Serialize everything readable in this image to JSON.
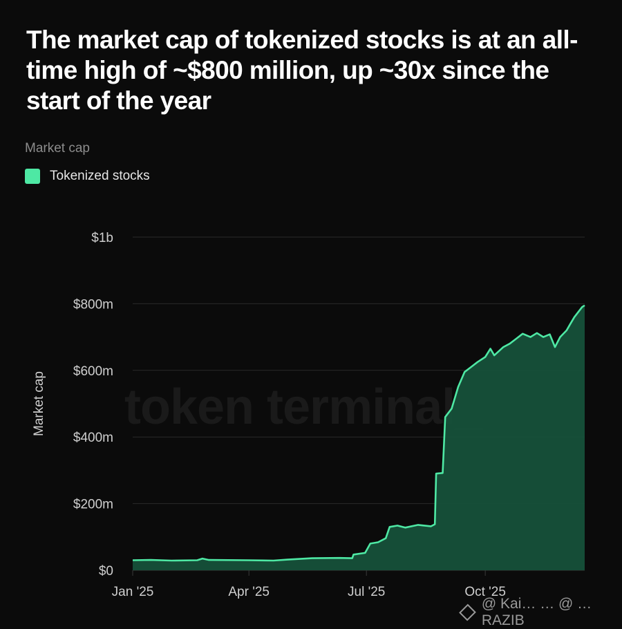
{
  "header": {
    "title": "The market cap of tokenized stocks is at an all-time high of ~$800 million, up ~30x since the start of the year",
    "subtitle": "Market cap"
  },
  "watermark": "token terminal_",
  "footer": {
    "text": "@ Kai… … @ …RAZIB",
    "icon": "binance-icon"
  },
  "colors": {
    "series": "#4ee8a4",
    "area": "#16513a",
    "background": "#0b0b0b",
    "grid": "#2b2b2b"
  },
  "chart_data": {
    "type": "area",
    "ylabel": "Market cap",
    "xlabel": "",
    "ylim": [
      0,
      1000
    ],
    "y_ticks": [
      {
        "value": 0,
        "label": "$0"
      },
      {
        "value": 200,
        "label": "$200m"
      },
      {
        "value": 400,
        "label": "$400m"
      },
      {
        "value": 600,
        "label": "$600m"
      },
      {
        "value": 800,
        "label": "$800m"
      },
      {
        "value": 1000,
        "label": "$1b"
      }
    ],
    "x_ticks": [
      {
        "value": "2025-01-01",
        "label": "Jan '25"
      },
      {
        "value": "2025-04-01",
        "label": "Apr '25"
      },
      {
        "value": "2025-07-01",
        "label": "Jul '25"
      },
      {
        "value": "2025-10-01",
        "label": "Oct '25"
      }
    ],
    "xlim": [
      "2025-01-01",
      "2025-12-17"
    ],
    "grid": true,
    "legend": "top-left",
    "series": [
      {
        "name": "Tokenized stocks",
        "points": [
          [
            "2025-01-01",
            30
          ],
          [
            "2025-01-15",
            31
          ],
          [
            "2025-01-31",
            29
          ],
          [
            "2025-02-20",
            30
          ],
          [
            "2025-02-24",
            35
          ],
          [
            "2025-03-01",
            31
          ],
          [
            "2025-03-31",
            30
          ],
          [
            "2025-04-20",
            29
          ],
          [
            "2025-05-01",
            32
          ],
          [
            "2025-05-20",
            36
          ],
          [
            "2025-06-10",
            37
          ],
          [
            "2025-06-20",
            36
          ],
          [
            "2025-06-21",
            47
          ],
          [
            "2025-06-30",
            52
          ],
          [
            "2025-07-04",
            80
          ],
          [
            "2025-07-10",
            84
          ],
          [
            "2025-07-16",
            96
          ],
          [
            "2025-07-19",
            130
          ],
          [
            "2025-07-25",
            134
          ],
          [
            "2025-07-31",
            128
          ],
          [
            "2025-08-10",
            136
          ],
          [
            "2025-08-20",
            132
          ],
          [
            "2025-08-23",
            138
          ],
          [
            "2025-08-24",
            290
          ],
          [
            "2025-08-29",
            292
          ],
          [
            "2025-08-31",
            460
          ],
          [
            "2025-09-05",
            485
          ],
          [
            "2025-09-10",
            550
          ],
          [
            "2025-09-15",
            595
          ],
          [
            "2025-09-20",
            610
          ],
          [
            "2025-09-25",
            625
          ],
          [
            "2025-10-01",
            640
          ],
          [
            "2025-10-05",
            665
          ],
          [
            "2025-10-08",
            645
          ],
          [
            "2025-10-15",
            670
          ],
          [
            "2025-10-20",
            680
          ],
          [
            "2025-10-25",
            695
          ],
          [
            "2025-10-30",
            710
          ],
          [
            "2025-11-05",
            700
          ],
          [
            "2025-11-10",
            712
          ],
          [
            "2025-11-15",
            700
          ],
          [
            "2025-11-20",
            708
          ],
          [
            "2025-11-24",
            670
          ],
          [
            "2025-11-28",
            700
          ],
          [
            "2025-12-03",
            720
          ],
          [
            "2025-12-06",
            740
          ],
          [
            "2025-12-09",
            760
          ],
          [
            "2025-12-12",
            775
          ],
          [
            "2025-12-15",
            790
          ],
          [
            "2025-12-17",
            795
          ]
        ]
      }
    ]
  }
}
